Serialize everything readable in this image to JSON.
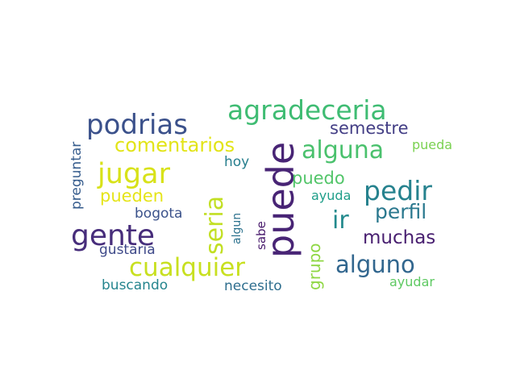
{
  "wordcloud": {
    "words": [
      {
        "text": "puede",
        "color": "#482475",
        "vertical": true
      },
      {
        "text": "agradeceria",
        "color": "#3fbc73",
        "vertical": false
      },
      {
        "text": "podrias",
        "color": "#3b518b",
        "vertical": false
      },
      {
        "text": "alguna",
        "color": "#4ac16d",
        "vertical": false
      },
      {
        "text": "jugar",
        "color": "#d8e219",
        "vertical": false
      },
      {
        "text": "seria",
        "color": "#c2df23",
        "vertical": true
      },
      {
        "text": "pedir",
        "color": "#26828e",
        "vertical": false
      },
      {
        "text": "gente",
        "color": "#472d7b",
        "vertical": false
      },
      {
        "text": "cualquier",
        "color": "#c8e020",
        "vertical": false
      },
      {
        "text": "alguno",
        "color": "#31668e",
        "vertical": false
      },
      {
        "text": "ir",
        "color": "#238a8d",
        "vertical": false
      },
      {
        "text": "comentarios",
        "color": "#e2e418",
        "vertical": false
      },
      {
        "text": "semestre",
        "color": "#433e85",
        "vertical": false
      },
      {
        "text": "perfil",
        "color": "#2a788e",
        "vertical": false
      },
      {
        "text": "muchas",
        "color": "#481f70",
        "vertical": false
      },
      {
        "text": "pueden",
        "color": "#e5e419",
        "vertical": false
      },
      {
        "text": "puedo",
        "color": "#52c569",
        "vertical": false
      },
      {
        "text": "grupo",
        "color": "#8fd744",
        "vertical": true
      },
      {
        "text": "buscando",
        "color": "#25858e",
        "vertical": false
      },
      {
        "text": "necesito",
        "color": "#2e6e8e",
        "vertical": false
      },
      {
        "text": "preguntar",
        "color": "#365c8d",
        "vertical": true
      },
      {
        "text": "gustaria",
        "color": "#3e4989",
        "vertical": false
      },
      {
        "text": "bogota",
        "color": "#3b528b",
        "vertical": false
      },
      {
        "text": "ayudar",
        "color": "#5ec962",
        "vertical": false
      },
      {
        "text": "ayuda",
        "color": "#1f9e89",
        "vertical": false
      },
      {
        "text": "pueda",
        "color": "#7ad151",
        "vertical": false
      },
      {
        "text": "hoy",
        "color": "#277f8e",
        "vertical": false
      },
      {
        "text": "sabe",
        "color": "#481a6c",
        "vertical": true
      },
      {
        "text": "algun",
        "color": "#2c728e",
        "vertical": true
      }
    ]
  }
}
